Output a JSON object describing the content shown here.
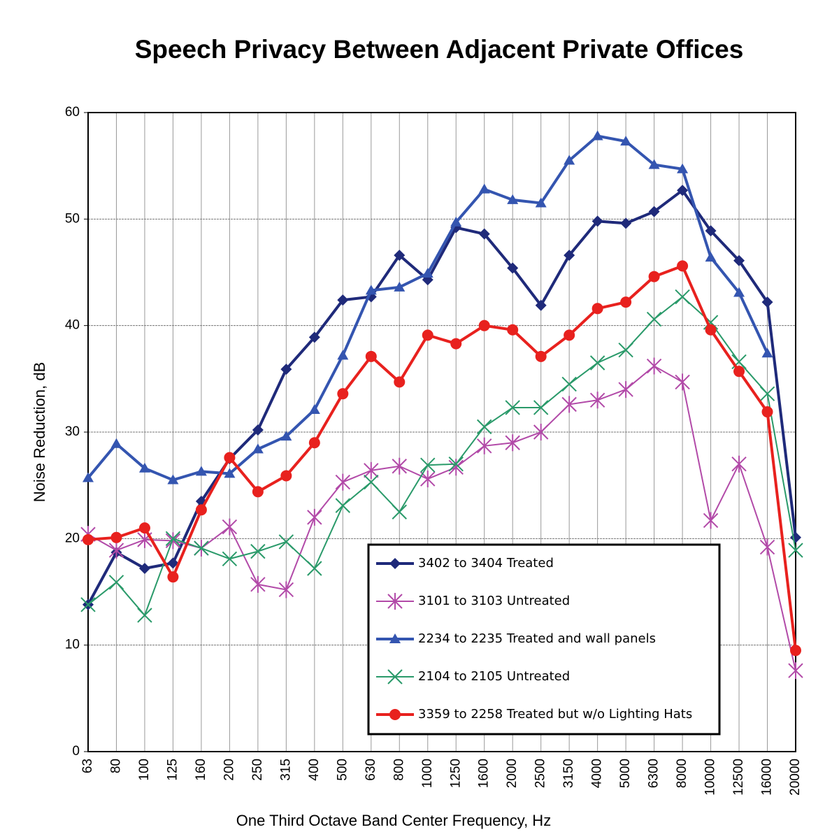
{
  "chart_data": {
    "type": "line",
    "title": "Speech Privacy Between Adjacent Private Offices",
    "x_label": "One Third Octave Band Center Frequency,  Hz",
    "y_label": "Noise Reduction, dB",
    "categories": [
      "63",
      "80",
      "100",
      "125",
      "160",
      "200",
      "250",
      "315",
      "400",
      "500",
      "630",
      "800",
      "1000",
      "1250",
      "1600",
      "2000",
      "2500",
      "3150",
      "4000",
      "5000",
      "6300",
      "8000",
      "10000",
      "12500",
      "16000",
      "20000"
    ],
    "ylim": [
      0,
      60
    ],
    "yticks": [
      0,
      10,
      20,
      30,
      40,
      50,
      60
    ],
    "grid": true,
    "series": [
      {
        "name": "3402 to 3404 Treated",
        "color": "#1f2a7a",
        "marker": "diamond",
        "values": [
          13.8,
          18.7,
          17.2,
          17.7,
          23.5,
          27.5,
          30.2,
          35.9,
          38.9,
          42.4,
          42.7,
          46.6,
          44.3,
          49.2,
          48.6,
          45.4,
          41.9,
          46.6,
          49.8,
          49.6,
          50.7,
          52.7,
          48.9,
          46.1,
          42.2,
          20.1
        ]
      },
      {
        "name": "3101 to 3103 Untreated",
        "color": "#b24aa8",
        "marker": "star",
        "values": [
          20.4,
          18.9,
          19.9,
          19.8,
          19.1,
          21.1,
          15.7,
          15.2,
          22.0,
          25.3,
          26.4,
          26.8,
          25.6,
          26.7,
          28.7,
          29.0,
          30.0,
          32.6,
          33.0,
          34.0,
          36.2,
          34.7,
          21.7,
          27.0,
          19.2,
          7.6
        ]
      },
      {
        "name": "2234 to 2235 Treated and wall panels",
        "color": "#3455b0",
        "marker": "triangle",
        "values": [
          25.7,
          28.9,
          26.6,
          25.5,
          26.3,
          26.1,
          28.4,
          29.6,
          32.1,
          37.2,
          43.3,
          43.6,
          44.9,
          49.7,
          52.8,
          51.8,
          51.5,
          55.5,
          57.8,
          57.3,
          55.1,
          54.7,
          46.4,
          43.1,
          37.4,
          null
        ]
      },
      {
        "name": "2104 to 2105 Untreated",
        "color": "#2a9a6a",
        "marker": "x",
        "values": [
          13.8,
          15.9,
          12.8,
          20.0,
          19.1,
          18.1,
          18.8,
          19.7,
          17.2,
          23.1,
          25.3,
          22.5,
          26.9,
          27.0,
          30.5,
          32.3,
          32.3,
          34.5,
          36.5,
          37.7,
          40.6,
          42.7,
          40.3,
          36.6,
          33.6,
          18.9
        ]
      },
      {
        "name": "3359 to 2258 Treated but w/o Lighting Hats",
        "color": "#e8211e",
        "marker": "circle",
        "values": [
          19.9,
          20.1,
          21.0,
          16.4,
          22.7,
          27.6,
          24.4,
          25.9,
          29.0,
          33.6,
          37.1,
          34.7,
          39.1,
          38.3,
          40.0,
          39.6,
          37.1,
          39.1,
          41.6,
          42.2,
          44.6,
          45.6,
          39.6,
          35.7,
          31.9,
          9.5
        ]
      }
    ]
  }
}
